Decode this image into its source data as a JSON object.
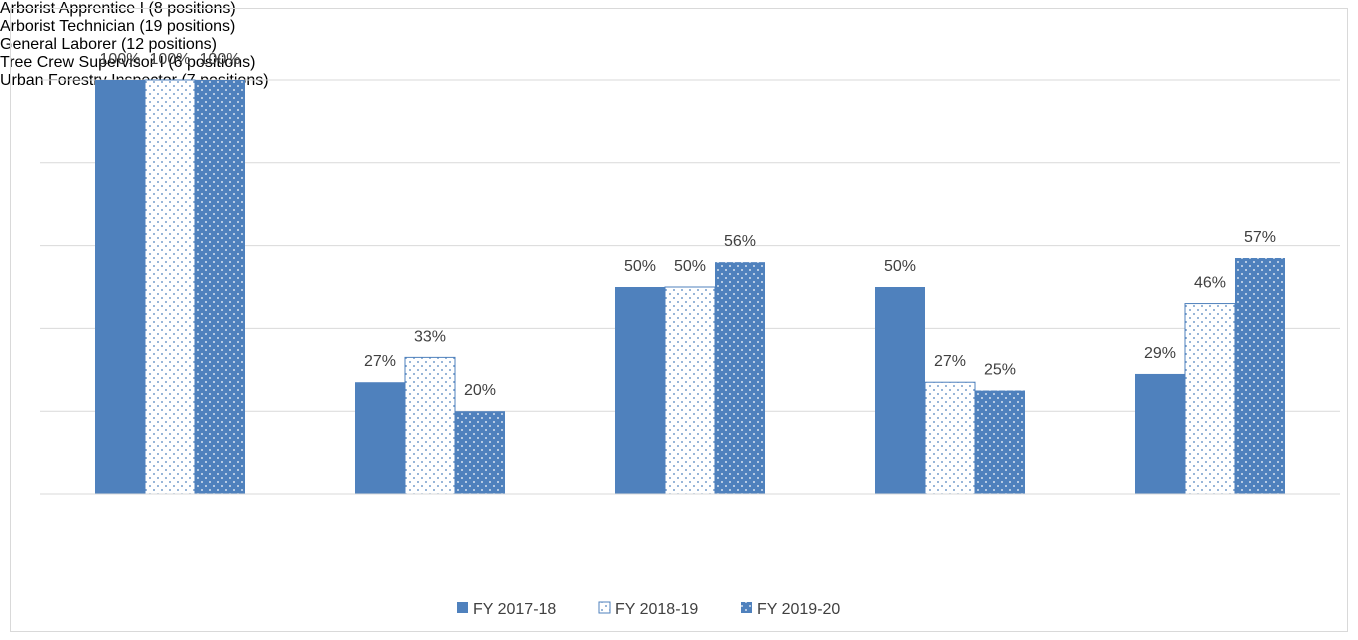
{
  "chart_data": {
    "type": "bar",
    "categories": [
      "Arborist Apprentice I\n(8 positions)",
      "Arborist Technician\n(19 positions)",
      "General Laborer\n(12 positions)",
      "Tree Crew Supervisor I\n(6 positions)",
      "Urban Forestry Inspector\n(7 positions)"
    ],
    "series": [
      {
        "name": "FY 2017-18",
        "color": "#4f81bd",
        "pattern": "solid",
        "values": [
          100,
          27,
          50,
          50,
          29
        ],
        "value_labels": [
          "100%",
          "27%",
          "50%",
          "50%",
          "29%"
        ]
      },
      {
        "name": "FY 2018-19",
        "color": "#4f81bd",
        "pattern": "dots-on-white",
        "values": [
          100,
          33,
          50,
          27,
          46
        ],
        "value_labels": [
          "100%",
          "33%",
          "50%",
          "27%",
          "46%"
        ]
      },
      {
        "name": "FY 2019-20",
        "color": "#4f81bd",
        "pattern": "dots-on-color",
        "values": [
          100,
          20,
          56,
          25,
          57
        ],
        "value_labels": [
          "100%",
          "20%",
          "56%",
          "25%",
          "57%"
        ]
      }
    ],
    "ylim": [
      0,
      100
    ],
    "yticks": [
      0,
      20,
      40,
      60,
      80,
      100
    ],
    "grid": true,
    "legend": "bottom"
  }
}
